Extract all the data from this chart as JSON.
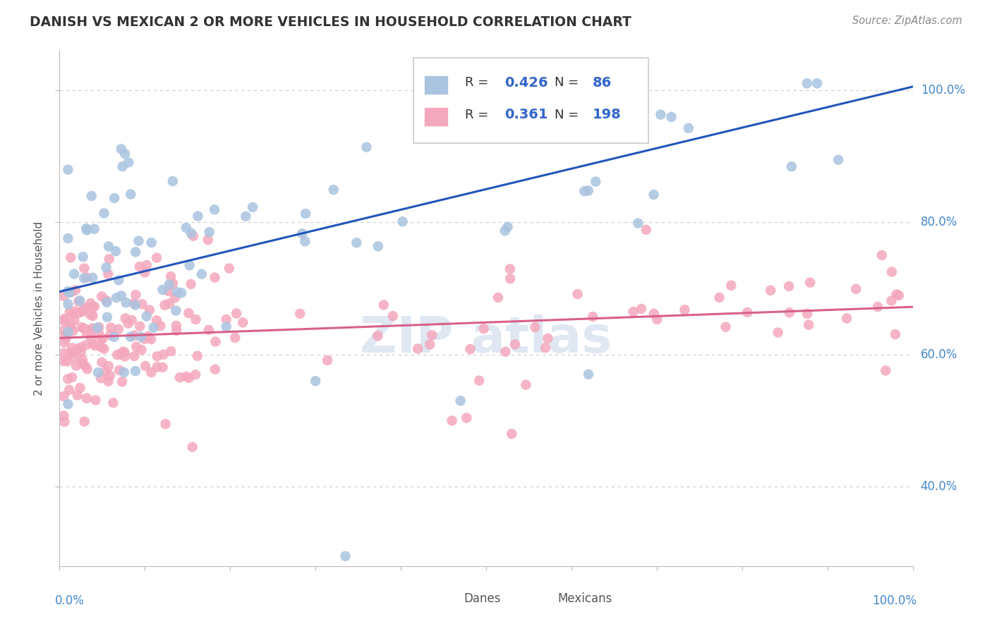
{
  "title": "DANISH VS MEXICAN 2 OR MORE VEHICLES IN HOUSEHOLD CORRELATION CHART",
  "source_text": "Source: ZipAtlas.com",
  "ylabel": "2 or more Vehicles in Household",
  "danes_R": 0.426,
  "danes_N": 86,
  "mexicans_R": 0.361,
  "mexicans_N": 198,
  "danes_color": "#aac4e0",
  "mexicans_color": "#f4a8be",
  "danes_line_color": "#2255bb",
  "mexicans_line_color": "#d9608a",
  "legend_R_color": "#3366cc",
  "watermark_color": "#c8d8ea",
  "danes_line_y0": 0.695,
  "danes_line_y1": 1.005,
  "mexicans_line_y0": 0.625,
  "mexicans_line_y1": 0.672,
  "ylim_min": 0.28,
  "ylim_max": 1.06,
  "xlim_min": 0.0,
  "xlim_max": 1.0
}
